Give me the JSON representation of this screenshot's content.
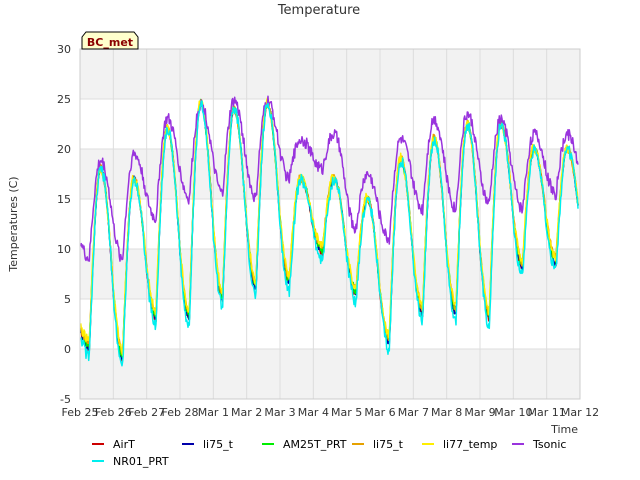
{
  "chart_data": {
    "type": "line",
    "title": "Temperature",
    "badge": "BC_met",
    "xlabel": "Time",
    "ylabel": "Temperatures (C)",
    "ylim": [
      -5,
      30
    ],
    "yticks": [
      -5,
      0,
      5,
      10,
      15,
      20,
      25,
      30
    ],
    "xlim": [
      0,
      15
    ],
    "xtick_labels": [
      "Feb 25",
      "Feb 26",
      "Feb 27",
      "Feb 28",
      "Mar 1",
      "Mar 2",
      "Mar 3",
      "Mar 4",
      "Mar 5",
      "Mar 6",
      "Mar 7",
      "Mar 8",
      "Mar 9",
      "Mar 10",
      "Mar 11",
      "Mar 12"
    ],
    "grid": true,
    "legend_position": "bottom",
    "daily_min": [
      0.0,
      -1.0,
      3.0,
      3.0,
      5.0,
      6.0,
      6.5,
      9.5,
      5.5,
      0.5,
      3.5,
      3.5,
      3.0,
      8.0,
      8.5
    ],
    "daily_max": [
      18.0,
      17.0,
      22.0,
      24.5,
      24.0,
      24.5,
      17.0,
      17.0,
      15.0,
      19.0,
      21.0,
      22.5,
      22.5,
      20.0,
      20.0
    ],
    "tsonic_min": [
      9.0,
      9.0,
      13.0,
      15.0,
      15.5,
      15.0,
      17.0,
      18.0,
      12.0,
      11.0,
      14.0,
      14.0,
      14.5,
      14.0,
      15.5
    ],
    "tsonic_max": [
      18.8,
      19.5,
      23.0,
      24.5,
      24.8,
      24.8,
      21.0,
      21.5,
      17.5,
      21.0,
      23.0,
      23.5,
      23.0,
      21.5,
      21.5
    ],
    "series": [
      {
        "name": "AirT",
        "color": "#cc0000",
        "offset": 0.0,
        "noise": 0.3
      },
      {
        "name": "li75_t",
        "color": "#0000aa",
        "offset": 0.1,
        "noise": 0.3
      },
      {
        "name": "AM25T_PRT",
        "color": "#00ee00",
        "offset": 0.4,
        "noise": 0.4
      },
      {
        "name": "li75_t",
        "color": "#e6a100",
        "offset": 0.6,
        "noise": 0.4
      },
      {
        "name": "li77_temp",
        "color": "#ffee00",
        "offset": 0.8,
        "noise": 0.5
      },
      {
        "name": "Tsonic",
        "color": "#9933dd",
        "offset": 0.0,
        "noise": 0.6
      },
      {
        "name": "NR01_PRT",
        "color": "#00eeee",
        "offset": -0.7,
        "noise": 0.6
      }
    ]
  }
}
